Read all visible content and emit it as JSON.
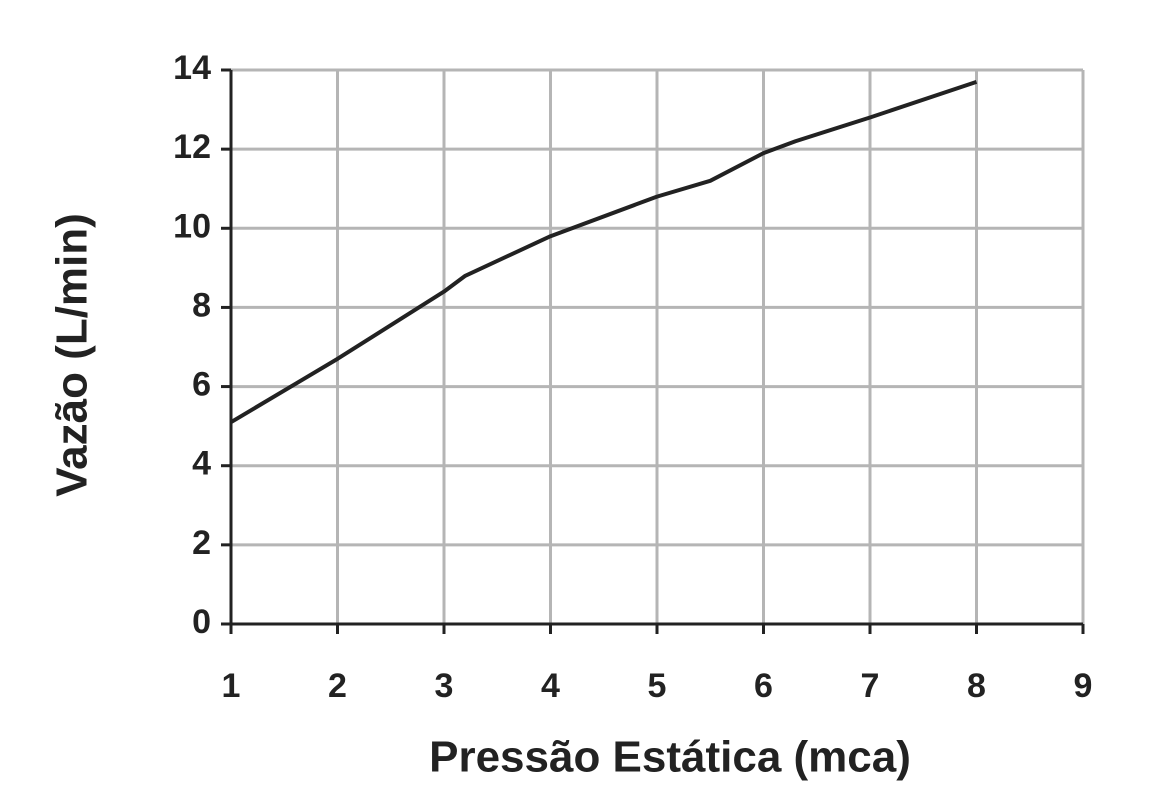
{
  "chart_data": {
    "type": "line",
    "x_label": "Pressão Estática (mca)",
    "y_label": "Vazão (L/min)",
    "x": [
      1,
      2,
      3,
      3.2,
      4,
      5,
      5.5,
      6,
      6.3,
      7,
      8
    ],
    "series": [
      {
        "color": "#222222",
        "values": [
          5.1,
          6.7,
          8.4,
          8.8,
          9.8,
          10.8,
          11.2,
          11.9,
          12.2,
          12.8,
          13.7
        ]
      }
    ],
    "xlim": [
      1,
      9
    ],
    "xticks": [
      1,
      2,
      3,
      4,
      5,
      6,
      7,
      8,
      9
    ],
    "ylim": [
      0,
      14
    ],
    "yticks": [
      0,
      2,
      4,
      6,
      8,
      10,
      12,
      14
    ],
    "grid": true
  }
}
